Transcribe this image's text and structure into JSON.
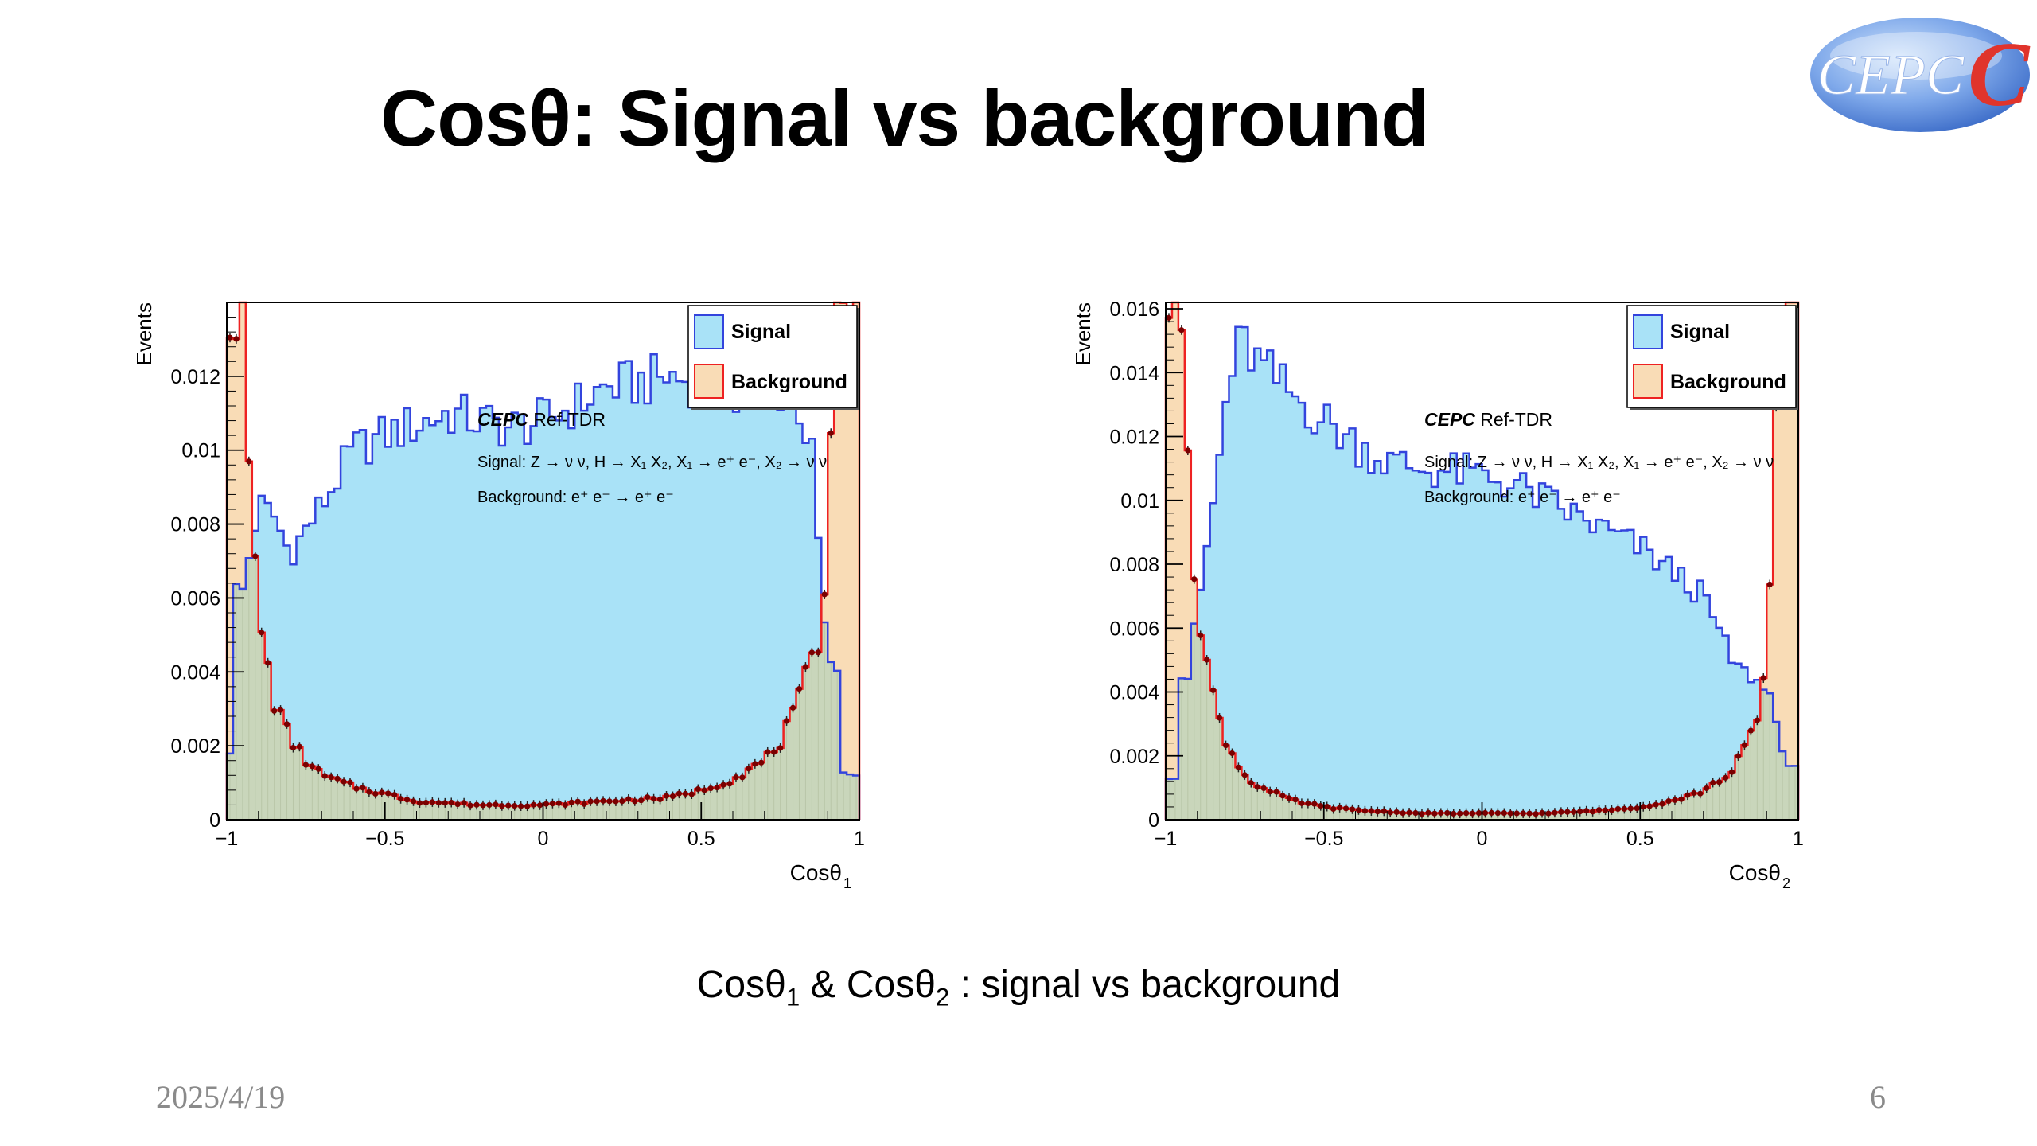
{
  "slide": {
    "title": "Cosθ: Signal vs background",
    "caption": {
      "part1": "Cosθ",
      "sub1": "1",
      "part2": " & Cosθ",
      "sub2": "2",
      "part3": " : signal vs background"
    },
    "date": "2025/4/19",
    "page_number": "6",
    "logo_text": "CEPC"
  },
  "colors": {
    "signal_fill": "#a9e2f7",
    "signal_line": "#3344dd",
    "background_fill": "#f9dcb6",
    "background_line": "#ee2222",
    "overlap_fill": "#c9d6bb",
    "point": "#7a0000"
  },
  "chart_data": [
    {
      "type": "histogram",
      "ylabel": "Events",
      "xlabel": "Cosθ",
      "xlabel_sub": "1",
      "xlim": [
        -1,
        1
      ],
      "ylim": [
        0,
        0.014
      ],
      "yticks": [
        "0",
        "0.002",
        "0.004",
        "0.006",
        "0.008",
        "0.01",
        "0.012"
      ],
      "ytick_values": [
        0,
        0.002,
        0.004,
        0.006,
        0.008,
        0.01,
        0.012
      ],
      "xticks": [
        "−1",
        "−0.5",
        "0",
        "0.5",
        "1"
      ],
      "xtick_values": [
        -1,
        -0.5,
        0,
        0.5,
        1
      ],
      "legend": {
        "placement": "top-right",
        "entries": [
          "Signal",
          "Background"
        ]
      },
      "annotations": {
        "brand": "CEPC",
        "tag": " Ref-TDR",
        "signal_process": "Signal: Z → ν ν, H → X₁ X₂, X₁ → e⁺ e⁻, X₂ → ν ν",
        "background_process": "Background: e⁺ e⁻ → e⁺ e⁻"
      },
      "series": [
        {
          "name": "Signal",
          "x": [
            -0.95,
            -0.9,
            -0.85,
            -0.8,
            -0.7,
            -0.6,
            -0.5,
            -0.4,
            -0.3,
            -0.2,
            -0.1,
            0,
            0.1,
            0.2,
            0.3,
            0.4,
            0.5,
            0.6,
            0.7,
            0.8,
            0.85,
            0.9
          ],
          "y": [
            0.0062,
            0.0085,
            0.0082,
            0.0072,
            0.0085,
            0.01,
            0.0104,
            0.0107,
            0.011,
            0.0108,
            0.0106,
            0.0108,
            0.0112,
            0.0117,
            0.0118,
            0.012,
            0.0118,
            0.0116,
            0.0117,
            0.0115,
            0.0098,
            0.0041
          ]
        },
        {
          "name": "Background",
          "x": [
            -0.985,
            -0.965,
            -0.945,
            -0.925,
            -0.905,
            -0.88,
            -0.85,
            -0.8,
            -0.75,
            -0.7,
            -0.6,
            -0.5,
            -0.4,
            -0.2,
            0,
            0.2,
            0.4,
            0.5,
            0.6,
            0.7,
            0.75,
            0.8,
            0.83,
            0.86,
            0.88,
            0.9,
            0.92,
            0.95,
            0.985
          ],
          "y": [
            0.014,
            0.014,
            0.013,
            0.0085,
            0.0062,
            0.0045,
            0.0032,
            0.0022,
            0.0016,
            0.0012,
            0.0009,
            0.0007,
            0.0005,
            0.0004,
            0.0004,
            0.0005,
            0.0006,
            0.0008,
            0.0011,
            0.0016,
            0.0021,
            0.003,
            0.0038,
            0.0044,
            0.0048,
            0.0085,
            0.014,
            0.014,
            0.014
          ]
        }
      ]
    },
    {
      "type": "histogram",
      "ylabel": "Events",
      "xlabel": "Cosθ",
      "xlabel_sub": "2",
      "xlim": [
        -1,
        1
      ],
      "ylim": [
        0,
        0.0162
      ],
      "yticks": [
        "0",
        "0.002",
        "0.004",
        "0.006",
        "0.008",
        "0.01",
        "0.012",
        "0.014",
        "0.016"
      ],
      "ytick_values": [
        0,
        0.002,
        0.004,
        0.006,
        0.008,
        0.01,
        0.012,
        0.014,
        0.016
      ],
      "xticks": [
        "−1",
        "−0.5",
        "0",
        "0.5",
        "1"
      ],
      "xtick_values": [
        -1,
        -0.5,
        0,
        0.5,
        1
      ],
      "legend": {
        "placement": "top-right",
        "entries": [
          "Signal",
          "Background"
        ]
      },
      "annotations": {
        "brand": "CEPC",
        "tag": " Ref-TDR",
        "signal_process": "Signal: Z → ν ν, H → X₁ X₂, X₁ → e⁺ e⁻, X₂ → ν ν",
        "background_process": "Background: e⁺ e⁻ → e⁺ e⁻"
      },
      "series": [
        {
          "name": "Signal",
          "x": [
            -0.93,
            -0.9,
            -0.87,
            -0.84,
            -0.8,
            -0.76,
            -0.7,
            -0.6,
            -0.5,
            -0.4,
            -0.3,
            -0.2,
            -0.1,
            0,
            0.1,
            0.2,
            0.3,
            0.4,
            0.5,
            0.6,
            0.7,
            0.8,
            0.85,
            0.88,
            0.92,
            0.96
          ],
          "y": [
            0.0045,
            0.0065,
            0.0085,
            0.0105,
            0.0138,
            0.015,
            0.0142,
            0.0133,
            0.0125,
            0.0118,
            0.0112,
            0.011,
            0.0109,
            0.0108,
            0.0105,
            0.01,
            0.0095,
            0.009,
            0.0085,
            0.0078,
            0.007,
            0.0048,
            0.0045,
            0.0042,
            0.0038,
            0.0016
          ]
        },
        {
          "name": "Background",
          "x": [
            -0.985,
            -0.965,
            -0.945,
            -0.925,
            -0.905,
            -0.88,
            -0.85,
            -0.8,
            -0.75,
            -0.7,
            -0.6,
            -0.5,
            -0.4,
            -0.2,
            0,
            0.2,
            0.4,
            0.5,
            0.6,
            0.7,
            0.75,
            0.8,
            0.83,
            0.86,
            0.88,
            0.9,
            0.92,
            0.95,
            0.985
          ],
          "y": [
            0.0162,
            0.0162,
            0.0162,
            0.0108,
            0.0074,
            0.0055,
            0.0038,
            0.0022,
            0.0014,
            0.001,
            0.0006,
            0.0004,
            0.0003,
            0.0002,
            0.0002,
            0.0002,
            0.0003,
            0.0004,
            0.0006,
            0.0009,
            0.0012,
            0.0017,
            0.0022,
            0.0028,
            0.0034,
            0.0052,
            0.0098,
            0.0162,
            0.0162
          ]
        }
      ]
    }
  ]
}
